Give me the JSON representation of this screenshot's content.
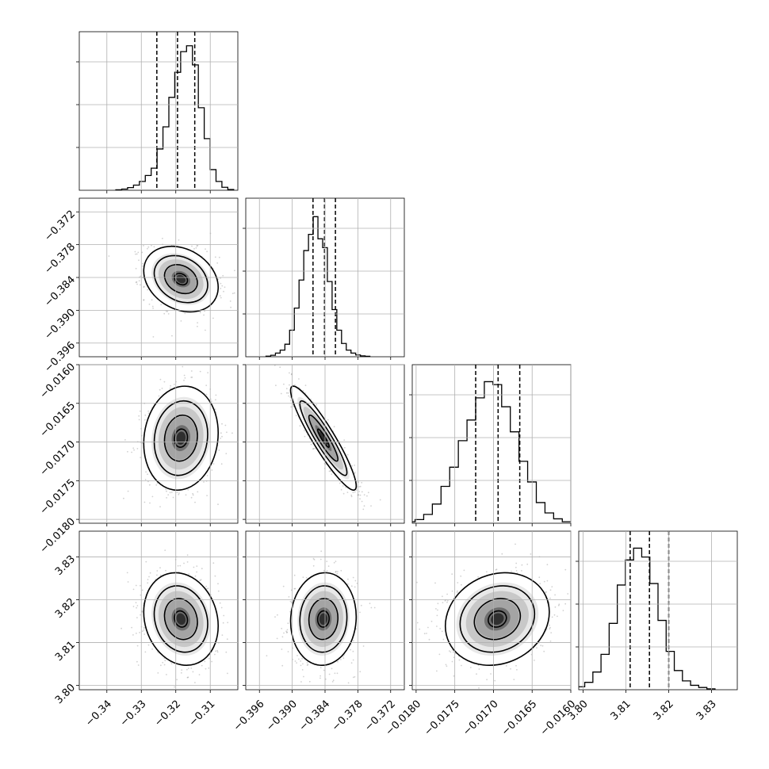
{
  "chart_data": {
    "type": "corner",
    "grid": true,
    "parameters": [
      {
        "range": [
          -0.348,
          -0.302
        ],
        "ticks": [
          -0.34,
          -0.33,
          -0.32,
          -0.31
        ],
        "tick_labels": [
          "−0.34",
          "−0.33",
          "−0.32",
          "−0.31"
        ],
        "quantiles": [
          -0.3255,
          -0.3195,
          -0.3145
        ],
        "hist": [
          0.003,
          0.008,
          0.018,
          0.035,
          0.06,
          0.1,
          0.15,
          0.28,
          0.43,
          0.63,
          0.8,
          0.94,
          0.98,
          0.85,
          0.56,
          0.35,
          0.14,
          0.06,
          0.02,
          0.005
        ],
        "mean": -0.3185,
        "sd": 0.0045
      },
      {
        "range": [
          -0.3985,
          -0.3695
        ],
        "ticks": [
          -0.396,
          -0.39,
          -0.384,
          -0.378,
          -0.372
        ],
        "tick_labels": [
          "−0.396",
          "−0.390",
          "−0.384",
          "−0.378",
          "−0.372"
        ],
        "quantiles": [
          -0.3862,
          -0.3841,
          -0.3821
        ],
        "hist": [
          0.004,
          0.01,
          0.025,
          0.045,
          0.085,
          0.18,
          0.33,
          0.52,
          0.72,
          0.83,
          0.95,
          0.8,
          0.74,
          0.51,
          0.32,
          0.18,
          0.09,
          0.045,
          0.025,
          0.012,
          0.006,
          0.003
        ],
        "mean": -0.3843,
        "sd": 0.0025
      },
      {
        "range": [
          -0.01805,
          -0.016
        ],
        "ticks": [
          -0.018,
          -0.0175,
          -0.017,
          -0.0165,
          -0.016
        ],
        "tick_labels": [
          "−0.0180",
          "−0.0175",
          "−0.0170",
          "−0.0165",
          "−0.0160"
        ],
        "quantiles": [
          -0.01723,
          -0.01694,
          -0.01666
        ],
        "hist": [
          0.01,
          0.025,
          0.06,
          0.13,
          0.25,
          0.38,
          0.56,
          0.7,
          0.85,
          0.96,
          0.94,
          0.79,
          0.62,
          0.42,
          0.28,
          0.14,
          0.07,
          0.03,
          0.01
        ],
        "mean": -0.01695,
        "sd": 0.00028
      },
      {
        "range": [
          3.799,
          3.836
        ],
        "ticks": [
          3.8,
          3.81,
          3.82,
          3.83
        ],
        "tick_labels": [
          "3.80",
          "3.81",
          "3.82",
          "3.83"
        ],
        "quantiles": [
          3.811,
          3.8155,
          3.82
        ],
        "hist": [
          0.008,
          0.02,
          0.05,
          0.12,
          0.24,
          0.45,
          0.71,
          0.88,
          0.96,
          0.9,
          0.72,
          0.47,
          0.26,
          0.13,
          0.06,
          0.03,
          0.015,
          0.006
        ],
        "mean": 3.8155,
        "sd": 0.0045
      }
    ],
    "correlations": [
      [
        1,
        -0.25,
        0.1,
        -0.15
      ],
      [
        -0.25,
        1,
        -0.92,
        0.05
      ],
      [
        0.1,
        -0.92,
        1,
        0.15
      ],
      [
        -0.15,
        0.05,
        0.15,
        1
      ]
    ]
  }
}
